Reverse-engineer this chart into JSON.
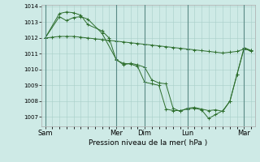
{
  "background_color": "#ceeae6",
  "grid_color": "#a8cec8",
  "line_color": "#2d6e2d",
  "ylabel_ticks": [
    1007,
    1008,
    1009,
    1010,
    1011,
    1012,
    1013,
    1014
  ],
  "ylim": [
    1006.4,
    1014.1
  ],
  "xlabel": "Pression niveau de la mer( hPa )",
  "day_labels": [
    "Sam",
    "Mer",
    "Dim",
    "Lun",
    "Mar"
  ],
  "day_positions": [
    0,
    10,
    14,
    20,
    28
  ],
  "total_points": 30,
  "series1_x": [
    0,
    1,
    2,
    3,
    4,
    5,
    6,
    7,
    8,
    9,
    10,
    11,
    12,
    13,
    14,
    15,
    16,
    17,
    18,
    19,
    20,
    21,
    22,
    23,
    24,
    25,
    26,
    27,
    28,
    29
  ],
  "series1_y": [
    1012.0,
    1012.05,
    1012.1,
    1012.1,
    1012.1,
    1012.05,
    1012.0,
    1011.95,
    1011.9,
    1011.85,
    1011.8,
    1011.75,
    1011.7,
    1011.65,
    1011.6,
    1011.55,
    1011.5,
    1011.45,
    1011.4,
    1011.35,
    1011.3,
    1011.25,
    1011.2,
    1011.15,
    1011.1,
    1011.05,
    1011.1,
    1011.15,
    1011.3,
    1011.2
  ],
  "series2_x": [
    0,
    2,
    3,
    4,
    5,
    6,
    8,
    10,
    11,
    12,
    13,
    14,
    15,
    16,
    17,
    18,
    19,
    20,
    21,
    22,
    23,
    24,
    25,
    26,
    27,
    28,
    29
  ],
  "series2_y": [
    1012.0,
    1013.35,
    1013.1,
    1013.3,
    1013.35,
    1013.2,
    1012.3,
    1010.65,
    1010.3,
    1010.4,
    1010.3,
    1010.15,
    1009.35,
    1009.15,
    1009.1,
    1007.55,
    1007.35,
    1007.55,
    1007.6,
    1007.5,
    1007.4,
    1007.45,
    1007.35,
    1008.0,
    1009.7,
    1011.4,
    1011.2
  ],
  "series3_x": [
    0,
    2,
    3,
    4,
    5,
    6,
    8,
    9,
    10,
    11,
    12,
    13,
    14,
    15,
    16,
    17,
    18,
    19,
    20,
    21,
    22,
    23,
    24,
    25,
    26,
    27,
    28,
    29
  ],
  "series3_y": [
    1012.0,
    1013.55,
    1013.65,
    1013.6,
    1013.45,
    1012.85,
    1012.45,
    1012.0,
    1010.6,
    1010.4,
    1010.35,
    1010.2,
    1009.2,
    1009.1,
    1009.0,
    1007.5,
    1007.4,
    1007.4,
    1007.5,
    1007.55,
    1007.45,
    1006.9,
    1007.15,
    1007.4,
    1008.0,
    1009.7,
    1011.35,
    1011.15
  ]
}
